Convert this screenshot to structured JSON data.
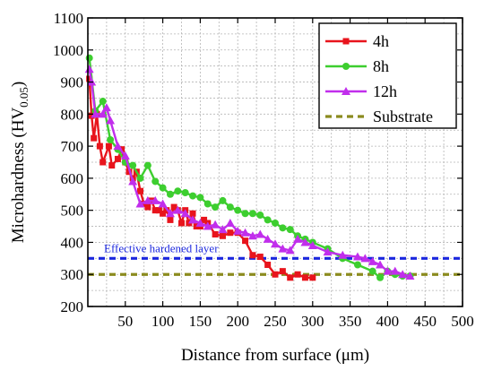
{
  "chart_data": {
    "type": "line",
    "xlabel": "Distance from surface (μm)",
    "ylabel_main": "Microhardness (HV",
    "ylabel_sub": "0.05",
    "ylabel_end": ")",
    "xlim": [
      0,
      500
    ],
    "ylim": [
      200,
      1100
    ],
    "xticks": [
      50,
      100,
      150,
      200,
      250,
      300,
      350,
      400,
      450,
      500
    ],
    "yticks": [
      200,
      300,
      400,
      500,
      600,
      700,
      800,
      900,
      1000,
      1100
    ],
    "grid": true,
    "legend_position": "top-right",
    "series": [
      {
        "name": "4h",
        "color": "#e8141c",
        "marker": "square",
        "x": [
          2,
          5,
          8,
          12,
          16,
          20,
          28,
          32,
          40,
          45,
          50,
          55,
          60,
          65,
          70,
          75,
          80,
          85,
          90,
          95,
          100,
          105,
          110,
          115,
          120,
          125,
          130,
          135,
          140,
          145,
          150,
          155,
          160,
          170,
          180,
          190,
          200,
          210,
          220,
          230,
          240,
          250,
          260,
          270,
          280,
          290,
          300
        ],
        "y": [
          910,
          795,
          725,
          800,
          700,
          650,
          700,
          640,
          660,
          690,
          650,
          620,
          600,
          620,
          560,
          520,
          510,
          530,
          500,
          500,
          490,
          500,
          470,
          510,
          500,
          460,
          500,
          460,
          490,
          450,
          450,
          470,
          460,
          425,
          420,
          430,
          430,
          405,
          360,
          355,
          330,
          300,
          310,
          290,
          300,
          290,
          290
        ]
      },
      {
        "name": "8h",
        "color": "#3dce2f",
        "marker": "circle",
        "x": [
          2,
          10,
          20,
          30,
          40,
          50,
          60,
          70,
          80,
          90,
          100,
          110,
          120,
          130,
          140,
          150,
          160,
          170,
          180,
          190,
          200,
          210,
          220,
          230,
          240,
          250,
          260,
          270,
          280,
          290,
          300,
          320,
          340,
          360,
          380,
          390,
          400,
          410,
          420,
          430
        ],
        "y": [
          975,
          810,
          840,
          720,
          690,
          650,
          640,
          600,
          640,
          590,
          570,
          550,
          560,
          555,
          545,
          540,
          520,
          510,
          530,
          510,
          500,
          490,
          490,
          485,
          470,
          460,
          445,
          440,
          420,
          410,
          400,
          380,
          350,
          330,
          310,
          290,
          310,
          300,
          295,
          295
        ]
      },
      {
        "name": "12h",
        "color": "#c12eec",
        "marker": "triangle",
        "x": [
          2,
          5,
          10,
          20,
          25,
          30,
          40,
          50,
          60,
          70,
          80,
          90,
          100,
          110,
          120,
          130,
          140,
          150,
          160,
          170,
          180,
          190,
          200,
          210,
          220,
          230,
          240,
          250,
          260,
          270,
          280,
          290,
          300,
          320,
          340,
          360,
          370,
          380,
          390,
          400,
          410,
          420,
          430
        ],
        "y": [
          940,
          900,
          800,
          800,
          820,
          780,
          700,
          670,
          590,
          520,
          530,
          530,
          520,
          490,
          500,
          490,
          470,
          460,
          450,
          455,
          440,
          460,
          435,
          430,
          420,
          425,
          410,
          395,
          380,
          375,
          410,
          400,
          390,
          370,
          360,
          355,
          350,
          340,
          330,
          310,
          310,
          300,
          295
        ]
      },
      {
        "name": "Substrate",
        "color": "#8b8b1e",
        "style": "dashed",
        "constant": 300
      }
    ],
    "reference_lines": [
      {
        "label": "Effective hardened layer",
        "color": "#1b27de",
        "style": "dashed",
        "y": 350
      }
    ]
  }
}
